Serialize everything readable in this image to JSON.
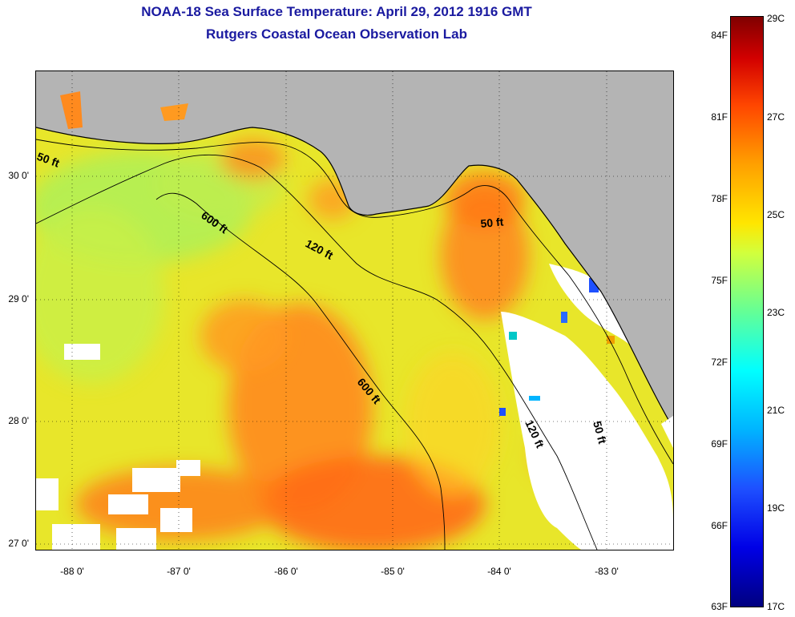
{
  "title": {
    "line1": "NOAA-18 Sea Surface Temperature:  April 29, 2012 1916 GMT",
    "line2": "Rutgers Coastal Ocean Observation Lab"
  },
  "map": {
    "y_ticks": [
      "30 0'",
      "29 0'",
      "28 0'",
      "27 0'"
    ],
    "x_ticks": [
      "-88 0'",
      "-87 0'",
      "-86 0'",
      "-85 0'",
      "-84 0'",
      "-83 0'"
    ],
    "contour_labels": [
      "50 ft",
      "600 ft",
      "120 ft",
      "50 ft",
      "600 ft",
      "120 ft",
      "50 ft"
    ],
    "colors": {
      "land": "#b4b4b4",
      "cloud": "#ffffff",
      "warm_water": "#ff8c1e",
      "mid_water": "#f0e628",
      "cool_water": "#b4f050"
    }
  },
  "colorbar": {
    "fahrenheit_labels": [
      "84F",
      "81F",
      "78F",
      "75F",
      "72F",
      "69F",
      "66F",
      "63F"
    ],
    "celsius_labels": [
      "29C",
      "27C",
      "25C",
      "23C",
      "21C",
      "19C",
      "17C"
    ],
    "min_f": 63,
    "max_f": 84,
    "min_c": 17,
    "max_c": 29
  }
}
